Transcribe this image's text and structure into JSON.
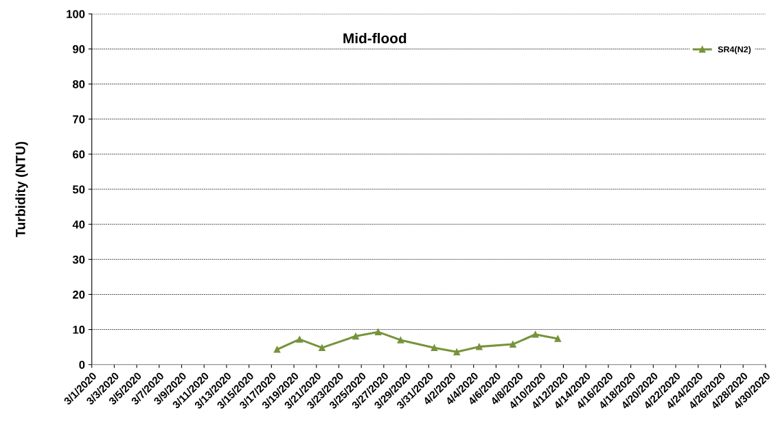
{
  "chart_data": {
    "type": "line",
    "title": "Mid-flood",
    "ylabel": "Turbidity (NTU)",
    "series": [
      {
        "name": "SR4(N2)",
        "color": "#77933c",
        "x": [
          "2020-03-17T12:00",
          "2020-03-19T12:00",
          "2020-03-21T12:00",
          "2020-03-24T12:00",
          "2020-03-26T12:00",
          "2020-03-28T12:00",
          "2020-03-31T12:00",
          "2020-04-02T12:00",
          "2020-04-04T12:00",
          "2020-04-07T12:00",
          "2020-04-09T12:00",
          "2020-04-11T12:00"
        ],
        "values": [
          4.3,
          7.2,
          4.8,
          8.1,
          9.3,
          7.0,
          4.8,
          3.6,
          5.1,
          5.8,
          8.6,
          7.4
        ]
      }
    ],
    "xlim": [
      "2020-03-01",
      "2020-04-30"
    ],
    "xticks": [
      {
        "value": "2020-03-01",
        "label": "3/1/2020"
      },
      {
        "value": "2020-03-03",
        "label": "3/3/2020"
      },
      {
        "value": "2020-03-05",
        "label": "3/5/2020"
      },
      {
        "value": "2020-03-07",
        "label": "3/7/2020"
      },
      {
        "value": "2020-03-09",
        "label": "3/9/2020"
      },
      {
        "value": "2020-03-11",
        "label": "3/11/2020"
      },
      {
        "value": "2020-03-13",
        "label": "3/13/2020"
      },
      {
        "value": "2020-03-15",
        "label": "3/15/2020"
      },
      {
        "value": "2020-03-17",
        "label": "3/17/2020"
      },
      {
        "value": "2020-03-19",
        "label": "3/19/2020"
      },
      {
        "value": "2020-03-21",
        "label": "3/21/2020"
      },
      {
        "value": "2020-03-23",
        "label": "3/23/2020"
      },
      {
        "value": "2020-03-25",
        "label": "3/25/2020"
      },
      {
        "value": "2020-03-27",
        "label": "3/27/2020"
      },
      {
        "value": "2020-03-29",
        "label": "3/29/2020"
      },
      {
        "value": "2020-03-31",
        "label": "3/31/2020"
      },
      {
        "value": "2020-04-02",
        "label": "4/2/2020"
      },
      {
        "value": "2020-04-04",
        "label": "4/4/2020"
      },
      {
        "value": "2020-04-06",
        "label": "4/6/2020"
      },
      {
        "value": "2020-04-08",
        "label": "4/8/2020"
      },
      {
        "value": "2020-04-10",
        "label": "4/10/2020"
      },
      {
        "value": "2020-04-12",
        "label": "4/12/2020"
      },
      {
        "value": "2020-04-14",
        "label": "4/14/2020"
      },
      {
        "value": "2020-04-16",
        "label": "4/16/2020"
      },
      {
        "value": "2020-04-18",
        "label": "4/18/2020"
      },
      {
        "value": "2020-04-20",
        "label": "4/20/2020"
      },
      {
        "value": "2020-04-22",
        "label": "4/22/2020"
      },
      {
        "value": "2020-04-24",
        "label": "4/24/2020"
      },
      {
        "value": "2020-04-26",
        "label": "4/26/2020"
      },
      {
        "value": "2020-04-28",
        "label": "4/28/2020"
      },
      {
        "value": "2020-04-30",
        "label": "4/30/2020"
      }
    ],
    "ylim": [
      0,
      100
    ],
    "yticks": [
      0,
      10,
      20,
      30,
      40,
      50,
      60,
      70,
      80,
      90,
      100
    ],
    "grid": "y",
    "legend": "top right",
    "marker": "triangle",
    "line_style": "solid"
  }
}
